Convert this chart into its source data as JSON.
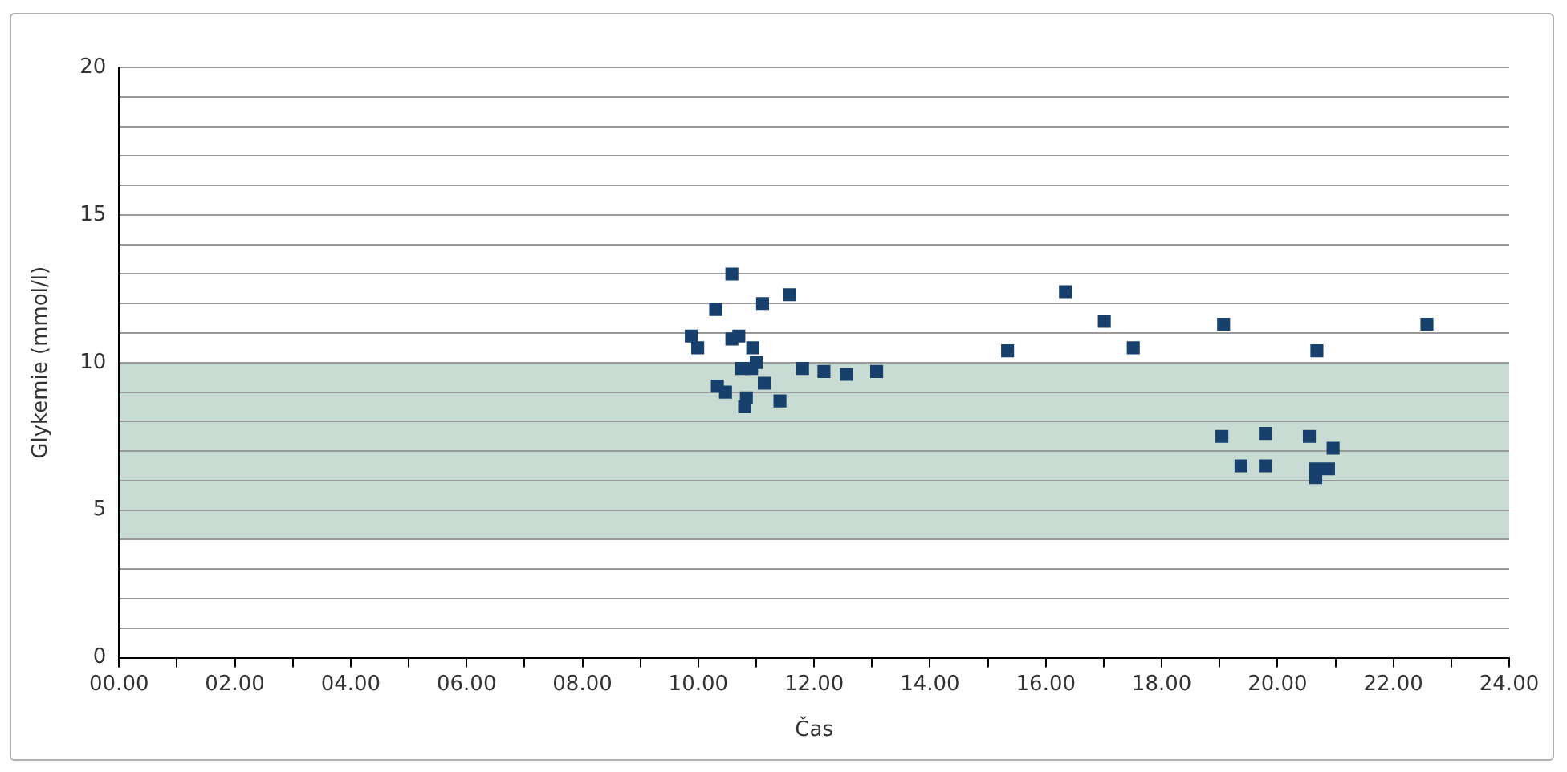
{
  "chart_data": {
    "type": "scatter",
    "xlabel": "Čas",
    "ylabel": "Glykemie (mmol/l)",
    "x": [
      9.88,
      9.99,
      10.58,
      10.3,
      10.7,
      10.58,
      10.94,
      11.0,
      10.75,
      10.92,
      10.33,
      10.47,
      10.83,
      10.8,
      11.14,
      11.11,
      11.58,
      11.41,
      11.8,
      12.17,
      12.56,
      13.08,
      15.34,
      16.34,
      17.01,
      17.51,
      19.07,
      19.04,
      19.37,
      19.79,
      19.79,
      20.55,
      20.66,
      20.66,
      20.68,
      20.96,
      20.88,
      22.58
    ],
    "values": [
      10.9,
      10.5,
      13.0,
      11.8,
      10.9,
      10.8,
      10.5,
      10.0,
      9.8,
      9.8,
      9.2,
      9.0,
      8.8,
      8.5,
      9.3,
      12.0,
      12.3,
      8.7,
      9.8,
      9.7,
      9.6,
      9.7,
      10.4,
      12.4,
      11.4,
      10.5,
      11.3,
      7.5,
      6.5,
      7.6,
      6.5,
      7.5,
      6.4,
      6.1,
      10.4,
      7.1,
      6.4,
      11.3
    ],
    "color": "#17406d",
    "marker": "square",
    "legend": false,
    "grid": "y",
    "bands": [
      {
        "axis": "y",
        "from": 4,
        "to": 10,
        "color": "#c8dcd4"
      }
    ],
    "xlim": [
      0,
      24
    ],
    "xticks": [
      {
        "value": 0,
        "label": "00.00"
      },
      {
        "value": 1,
        "label": null
      },
      {
        "value": 2,
        "label": "02.00"
      },
      {
        "value": 3,
        "label": null
      },
      {
        "value": 4,
        "label": "04.00"
      },
      {
        "value": 5,
        "label": null
      },
      {
        "value": 6,
        "label": "06.00"
      },
      {
        "value": 7,
        "label": null
      },
      {
        "value": 8,
        "label": "08.00"
      },
      {
        "value": 9,
        "label": null
      },
      {
        "value": 10,
        "label": "10.00"
      },
      {
        "value": 11,
        "label": null
      },
      {
        "value": 12,
        "label": "12.00"
      },
      {
        "value": 13,
        "label": null
      },
      {
        "value": 14,
        "label": "14.00"
      },
      {
        "value": 15,
        "label": null
      },
      {
        "value": 16,
        "label": "16.00"
      },
      {
        "value": 17,
        "label": null
      },
      {
        "value": 18,
        "label": "18.00"
      },
      {
        "value": 19,
        "label": null
      },
      {
        "value": 20,
        "label": "20.00"
      },
      {
        "value": 21,
        "label": null
      },
      {
        "value": 22,
        "label": "22.00"
      },
      {
        "value": 23,
        "label": null
      },
      {
        "value": 24,
        "label": "24.00"
      }
    ],
    "ylim": [
      0,
      20
    ],
    "yticks": [
      0,
      {
        "value": 1,
        "label": null
      },
      {
        "value": 2,
        "label": null
      },
      {
        "value": 3,
        "label": null
      },
      {
        "value": 4,
        "label": null
      },
      5,
      {
        "value": 6,
        "label": null
      },
      {
        "value": 7,
        "label": null
      },
      {
        "value": 8,
        "label": null
      },
      {
        "value": 9,
        "label": null
      },
      10,
      {
        "value": 11,
        "label": null
      },
      {
        "value": 12,
        "label": null
      },
      {
        "value": 13,
        "label": null
      },
      {
        "value": 14,
        "label": null
      },
      15,
      {
        "value": 16,
        "label": null
      },
      {
        "value": 17,
        "label": null
      },
      {
        "value": 18,
        "label": null
      },
      {
        "value": 19,
        "label": null
      },
      20
    ]
  }
}
